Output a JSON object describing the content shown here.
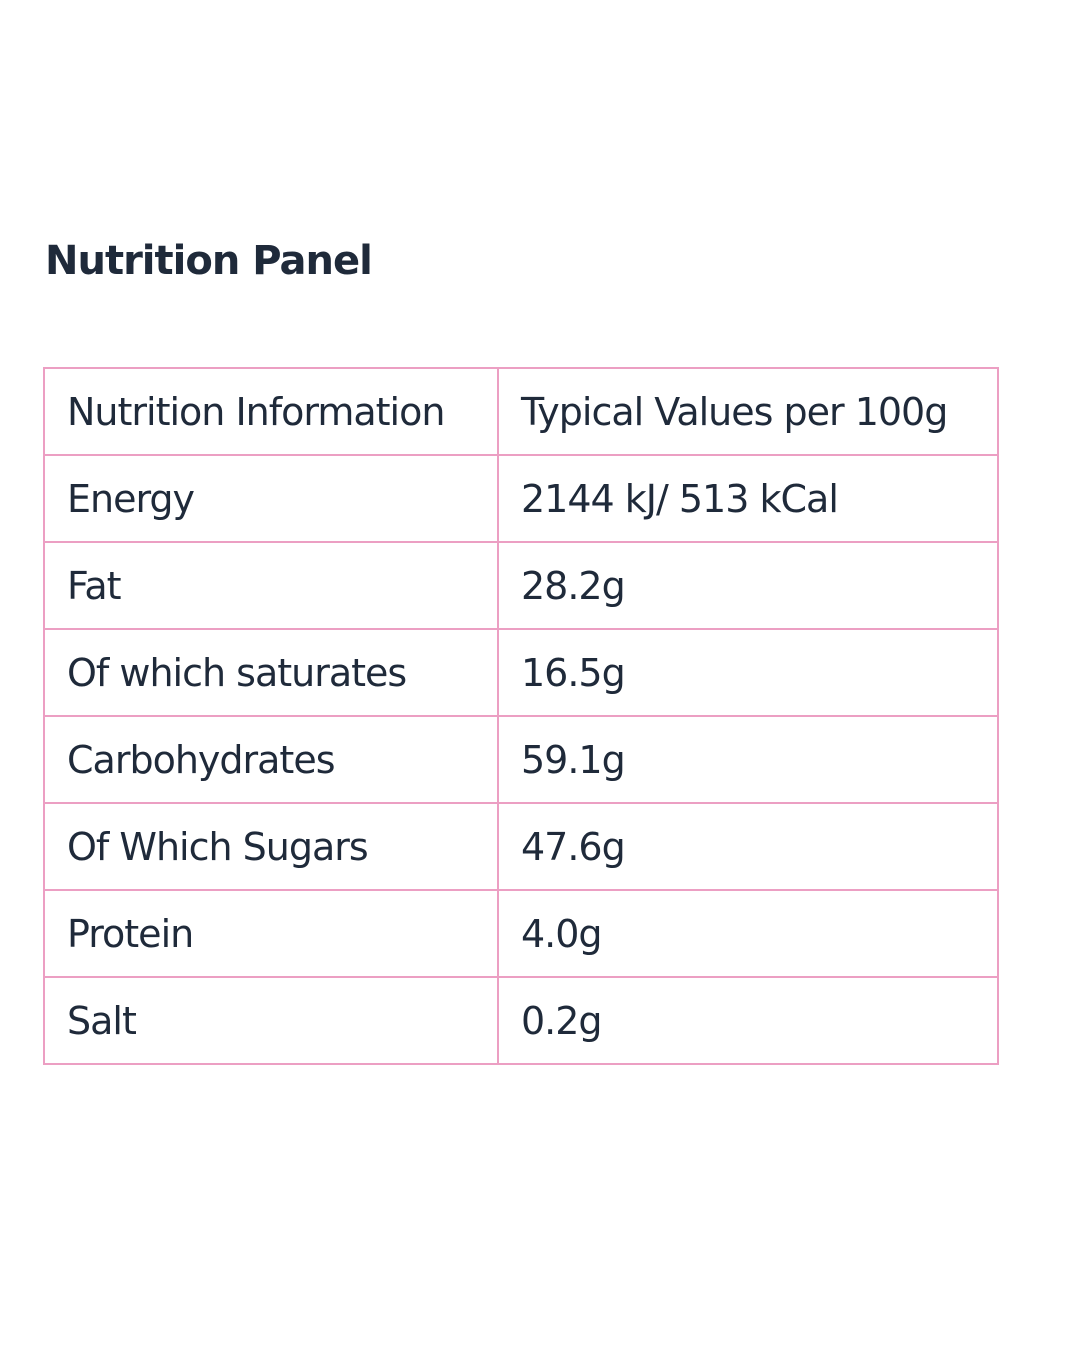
{
  "heading": "Nutrition Panel",
  "table": {
    "header": [
      "Nutrition Information",
      "Typical Values per 100g"
    ],
    "rows": [
      [
        "Energy",
        "2144 kJ/ 513 kCal"
      ],
      [
        "Fat",
        "28.2g"
      ],
      [
        "Of which saturates",
        "16.5g"
      ],
      [
        "Carbohydrates",
        "59.1g"
      ],
      [
        "Of Which Sugars",
        "47.6g"
      ],
      [
        "Protein",
        "4.0g"
      ],
      [
        "Salt",
        "0.2g"
      ]
    ]
  }
}
